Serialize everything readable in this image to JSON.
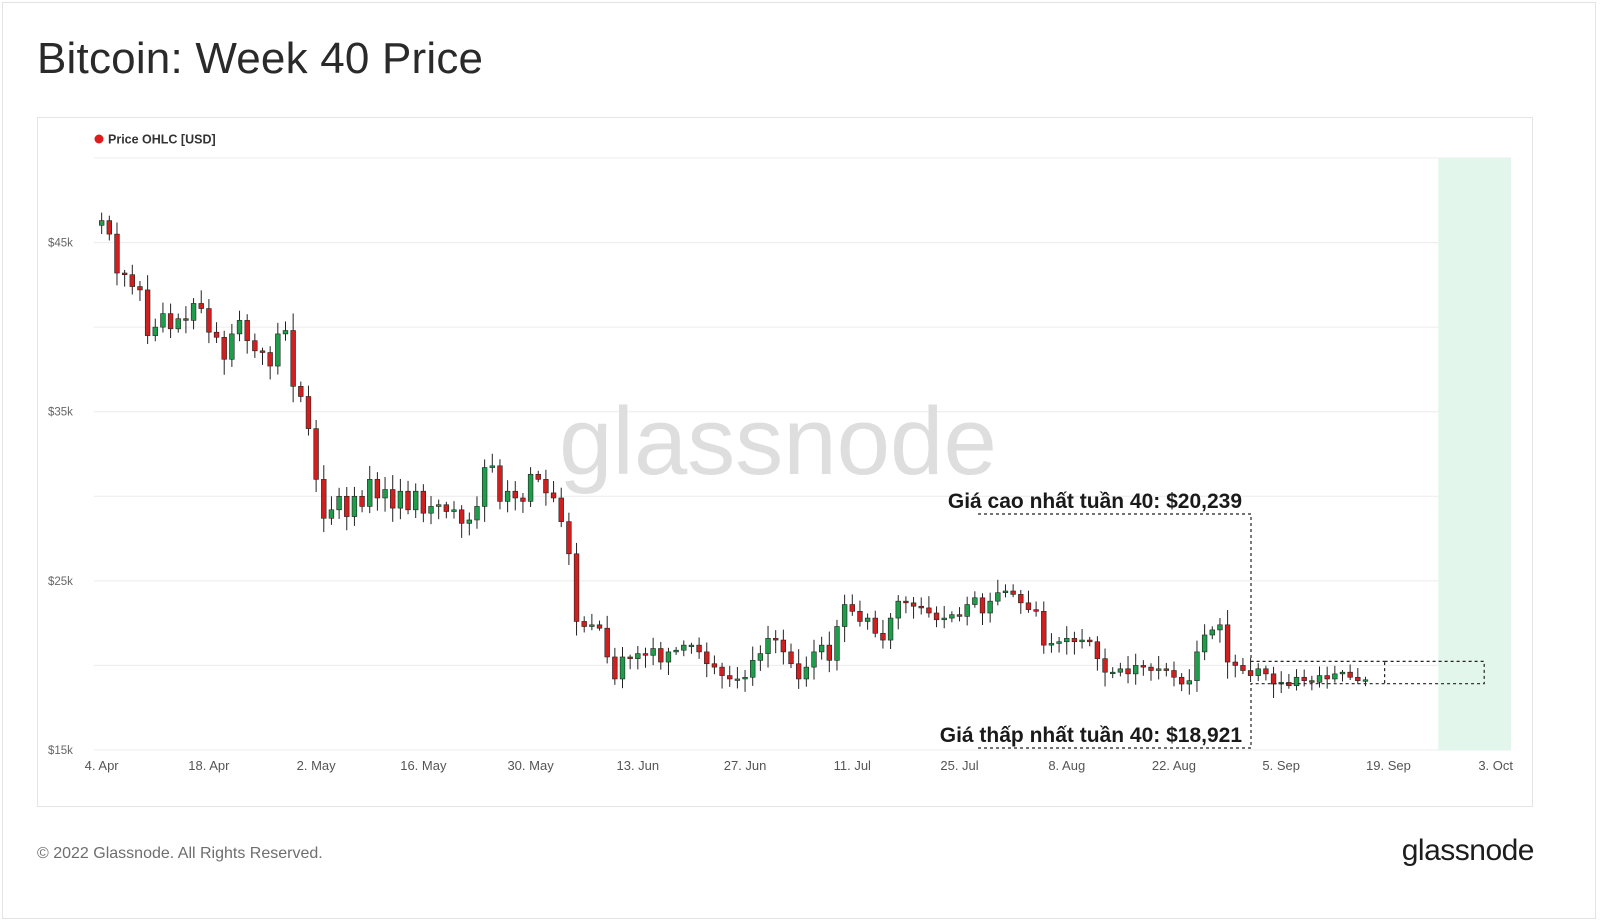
{
  "title": "Bitcoin: Week 40 Price",
  "footer": {
    "copyright": "© 2022 Glassnode. All Rights Reserved.",
    "logo": "glassnode"
  },
  "watermark": "glassnode",
  "legend": {
    "label": "Price OHLC [USD]",
    "color": "#e01b1b"
  },
  "colors": {
    "up": "#1e9e4a",
    "down": "#d11f1f",
    "highlight": "#e3f6ec",
    "grid": "#ececec"
  },
  "annotations": {
    "high": {
      "label": "Giá cao nhất tuần 40: $20,239",
      "value": 20239
    },
    "low": {
      "label": "Giá thấp nhất tuần 40: $18,921",
      "value": 18921
    }
  },
  "chart_data": {
    "type": "candlestick",
    "title": "Bitcoin: Week 40 Price",
    "series_name": "Price OHLC [USD]",
    "x_start": "2022-04-03",
    "x_end": "2022-10-05",
    "x_ticks": [
      {
        "date": "2022-04-04",
        "label": "4. Apr"
      },
      {
        "date": "2022-04-18",
        "label": "18. Apr"
      },
      {
        "date": "2022-05-02",
        "label": "2. May"
      },
      {
        "date": "2022-05-16",
        "label": "16. May"
      },
      {
        "date": "2022-05-30",
        "label": "30. May"
      },
      {
        "date": "2022-06-13",
        "label": "13. Jun"
      },
      {
        "date": "2022-06-27",
        "label": "27. Jun"
      },
      {
        "date": "2022-07-11",
        "label": "11. Jul"
      },
      {
        "date": "2022-07-25",
        "label": "25. Jul"
      },
      {
        "date": "2022-08-08",
        "label": "8. Aug"
      },
      {
        "date": "2022-08-22",
        "label": "22. Aug"
      },
      {
        "date": "2022-09-05",
        "label": "5. Sep"
      },
      {
        "date": "2022-09-19",
        "label": "19. Sep"
      },
      {
        "date": "2022-10-03",
        "label": "3. Oct"
      }
    ],
    "y_ticks": [
      {
        "value": 15000,
        "label": "$15k"
      },
      {
        "value": 25000,
        "label": "$25k"
      },
      {
        "value": 35000,
        "label": "$35k"
      },
      {
        "value": 45000,
        "label": "$45k"
      }
    ],
    "ylim": [
      15000,
      50000
    ],
    "grid": true,
    "highlight_week": [
      "2022-09-26",
      "2022-10-05"
    ],
    "closes": [
      46300,
      45500,
      43200,
      43100,
      42400,
      42200,
      39500,
      40000,
      40800,
      39900,
      40500,
      40400,
      41400,
      41100,
      39700,
      39400,
      38100,
      39600,
      40400,
      39200,
      38600,
      38500,
      37700,
      39600,
      39800,
      36500,
      35900,
      34000,
      31000,
      28700,
      29200,
      30000,
      28800,
      30000,
      29400,
      31000,
      29900,
      30400,
      29300,
      30300,
      29200,
      30300,
      29000,
      29400,
      29500,
      29100,
      29200,
      28400,
      28600,
      29400,
      31700,
      31800,
      29700,
      30300,
      29900,
      29700,
      31300,
      31000,
      30200,
      29900,
      28500,
      26600,
      22600,
      22300,
      22400,
      22200,
      20500,
      19200,
      20500,
      20400,
      20700,
      20600,
      21000,
      20200,
      20800,
      20900,
      21200,
      21200,
      20800,
      20100,
      19900,
      19400,
      19200,
      19200,
      19300,
      20300,
      20700,
      21600,
      21500,
      20800,
      20100,
      19200,
      19900,
      20800,
      21200,
      20300,
      22300,
      23600,
      23200,
      22600,
      22800,
      21900,
      21500,
      22800,
      23800,
      23700,
      23500,
      23400,
      23100,
      22700,
      22800,
      23000,
      22900,
      23600,
      24000,
      23100,
      23800,
      24300,
      24400,
      24200,
      23700,
      23300,
      23200,
      21200,
      21300,
      21400,
      21600,
      21400,
      21500,
      21400,
      20400,
      19600,
      19600,
      19800,
      19500,
      20000,
      19900,
      19700,
      19800,
      19700,
      19300,
      18900,
      19100,
      20800,
      21800,
      22100,
      22400,
      20200,
      20000,
      19700,
      19400,
      19800,
      19500,
      18900,
      19000,
      18800,
      19300,
      19100,
      19000,
      19400,
      19200,
      19500,
      19600,
      19300,
      19100,
      19150
    ]
  }
}
